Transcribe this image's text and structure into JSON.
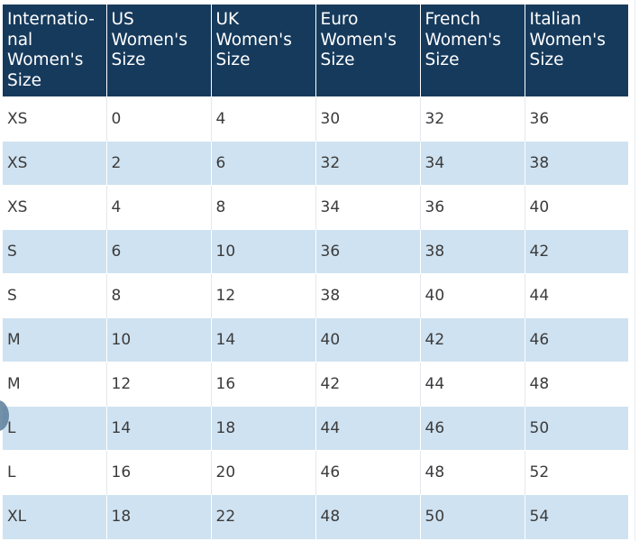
{
  "table": {
    "headers": [
      "Internatio-\nnal\nWomen's\nSize",
      "US\nWomen's\nSize",
      "UK\nWomen's\nSize",
      "Euro\nWomen's\nSize",
      "French\nWomen's\nSize",
      "Italian\nWomen's\nSize"
    ],
    "rows": [
      [
        "XS",
        "0",
        "4",
        "30",
        "32",
        "36"
      ],
      [
        "XS",
        "2",
        "6",
        "32",
        "34",
        "38"
      ],
      [
        "XS",
        "4",
        "8",
        "34",
        "36",
        "40"
      ],
      [
        "S",
        "6",
        "10",
        "36",
        "38",
        "42"
      ],
      [
        "S",
        "8",
        "12",
        "38",
        "40",
        "44"
      ],
      [
        "M",
        "10",
        "14",
        "40",
        "42",
        "46"
      ],
      [
        "M",
        "12",
        "16",
        "42",
        "44",
        "48"
      ],
      [
        "L",
        "14",
        "18",
        "44",
        "46",
        "50"
      ],
      [
        "L",
        "16",
        "20",
        "46",
        "48",
        "52"
      ],
      [
        "XL",
        "18",
        "22",
        "48",
        "50",
        "54"
      ]
    ]
  },
  "colors": {
    "header_bg": "#163a5c",
    "header_text": "#ffffff",
    "stripe_bg": "#cfe2f1",
    "cell_text": "#3b3b3b"
  }
}
